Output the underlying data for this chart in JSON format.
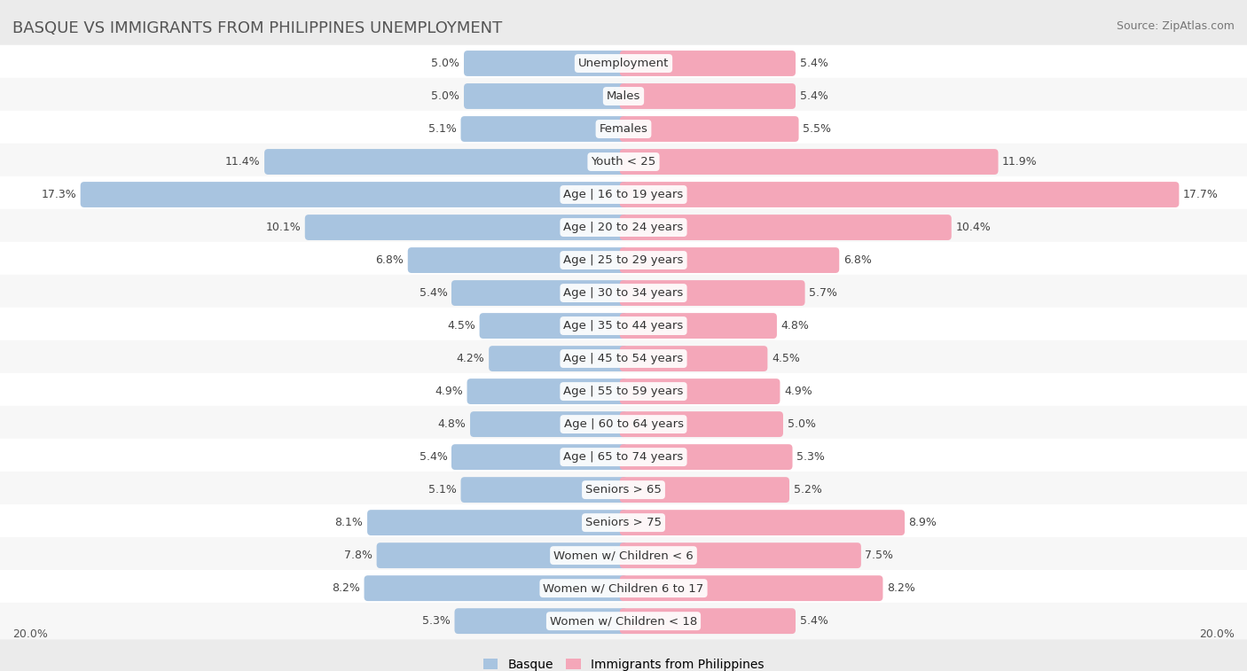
{
  "title": "BASQUE VS IMMIGRANTS FROM PHILIPPINES UNEMPLOYMENT",
  "source": "Source: ZipAtlas.com",
  "categories": [
    "Unemployment",
    "Males",
    "Females",
    "Youth < 25",
    "Age | 16 to 19 years",
    "Age | 20 to 24 years",
    "Age | 25 to 29 years",
    "Age | 30 to 34 years",
    "Age | 35 to 44 years",
    "Age | 45 to 54 years",
    "Age | 55 to 59 years",
    "Age | 60 to 64 years",
    "Age | 65 to 74 years",
    "Seniors > 65",
    "Seniors > 75",
    "Women w/ Children < 6",
    "Women w/ Children 6 to 17",
    "Women w/ Children < 18"
  ],
  "basque": [
    5.0,
    5.0,
    5.1,
    11.4,
    17.3,
    10.1,
    6.8,
    5.4,
    4.5,
    4.2,
    4.9,
    4.8,
    5.4,
    5.1,
    8.1,
    7.8,
    8.2,
    5.3
  ],
  "philippines": [
    5.4,
    5.4,
    5.5,
    11.9,
    17.7,
    10.4,
    6.8,
    5.7,
    4.8,
    4.5,
    4.9,
    5.0,
    5.3,
    5.2,
    8.9,
    7.5,
    8.2,
    5.4
  ],
  "basque_color": "#a8c4e0",
  "philippines_color": "#f4a7b9",
  "basque_label": "Basque",
  "philippines_label": "Immigrants from Philippines",
  "background_color": "#ebebeb",
  "row_background_odd": "#f7f7f7",
  "row_background_even": "#ffffff",
  "axis_limit": 20.0,
  "bar_scale": 20.0,
  "label_fontsize": 9.5,
  "value_fontsize": 9.0,
  "title_fontsize": 13,
  "legend_fontsize": 10,
  "source_fontsize": 9
}
